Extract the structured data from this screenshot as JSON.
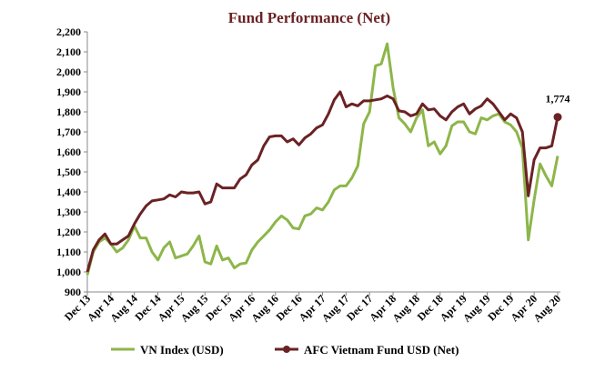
{
  "chart_data": {
    "type": "line",
    "title": "Fund Performance (Net)",
    "xlabel": "",
    "ylabel": "",
    "ylim": [
      900,
      2200
    ],
    "yticks": [
      "900",
      "1,000",
      "1,100",
      "1,200",
      "1,300",
      "1,400",
      "1,500",
      "1,600",
      "1,700",
      "1,800",
      "1,900",
      "2,000",
      "2,100",
      "2,200"
    ],
    "xtick_labels": [
      "Dec 13",
      "Apr 14",
      "Aug 14",
      "Dec 14",
      "Apr 15",
      "Aug 15",
      "Dec 15",
      "Apr 16",
      "Aug 16",
      "Dec 16",
      "Apr 17",
      "Aug 17",
      "Dec 17",
      "Apr 18",
      "Aug 18",
      "Dec 18",
      "Apr 19",
      "Aug 19",
      "Dec 19",
      "Apr 20",
      "Aug 20"
    ],
    "x_range": [
      "Dec 13",
      "Aug 20"
    ],
    "x_frequency": "monthly",
    "grid": false,
    "legend_position": "bottom",
    "series": [
      {
        "name": "VN Index (USD)",
        "color": "#8db64a",
        "values": [
          985,
          1100,
          1150,
          1170,
          1140,
          1100,
          1120,
          1160,
          1230,
          1170,
          1170,
          1100,
          1060,
          1120,
          1150,
          1070,
          1080,
          1090,
          1130,
          1180,
          1050,
          1040,
          1130,
          1060,
          1070,
          1020,
          1040,
          1045,
          1110,
          1150,
          1180,
          1210,
          1250,
          1280,
          1260,
          1220,
          1215,
          1280,
          1290,
          1320,
          1310,
          1350,
          1410,
          1430,
          1430,
          1470,
          1530,
          1740,
          1800,
          2030,
          2040,
          2140,
          1920,
          1770,
          1740,
          1700,
          1770,
          1810,
          1630,
          1650,
          1590,
          1630,
          1730,
          1750,
          1750,
          1700,
          1690,
          1770,
          1760,
          1780,
          1790,
          1750,
          1735,
          1700,
          1620,
          1160,
          1360,
          1540,
          1480,
          1430,
          1580
        ]
      },
      {
        "name": "AFC Vietnam Fund USD (Net)",
        "color": "#6b2224",
        "values": [
          1000,
          1110,
          1160,
          1190,
          1140,
          1140,
          1160,
          1180,
          1240,
          1290,
          1330,
          1355,
          1360,
          1365,
          1385,
          1375,
          1400,
          1395,
          1395,
          1400,
          1340,
          1350,
          1440,
          1420,
          1420,
          1420,
          1465,
          1485,
          1535,
          1560,
          1630,
          1675,
          1680,
          1680,
          1650,
          1665,
          1635,
          1670,
          1690,
          1720,
          1735,
          1790,
          1860,
          1900,
          1825,
          1840,
          1830,
          1855,
          1855,
          1860,
          1865,
          1880,
          1865,
          1805,
          1800,
          1780,
          1790,
          1840,
          1810,
          1815,
          1780,
          1760,
          1800,
          1825,
          1840,
          1790,
          1815,
          1830,
          1865,
          1840,
          1800,
          1760,
          1790,
          1770,
          1700,
          1380,
          1560,
          1620,
          1620,
          1630,
          1774
        ]
      }
    ],
    "annotations": [
      {
        "series": "AFC Vietnam Fund USD (Net)",
        "point": "Aug 20",
        "label": "1,774"
      }
    ]
  }
}
